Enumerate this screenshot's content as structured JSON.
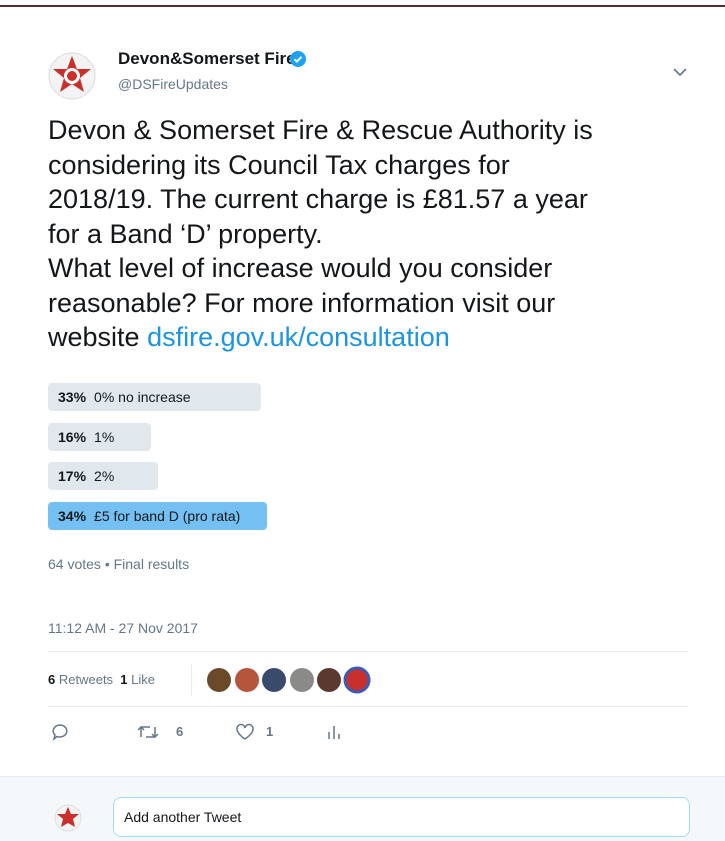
{
  "tweet": {
    "author": {
      "name": "Devon&Somerset Fire",
      "handle": "@DSFireUpdates"
    },
    "text_lines": [
      "Devon & Somerset Fire & Rescue Authority is",
      "considering its Council Tax charges for",
      "2018/19. The current charge is £81.57 a year",
      "for a Band ‘D’ property.",
      "What level of increase would you consider",
      "reasonable? For more information visit our",
      "website "
    ],
    "link": "dsfire.gov.uk/consultation",
    "poll": {
      "options": [
        {
          "percent": 33,
          "percent_label": "33%",
          "label": "0% no increase"
        },
        {
          "percent": 16,
          "percent_label": "16%",
          "label": "1%"
        },
        {
          "percent": 17,
          "percent_label": "17%",
          "label": "2%"
        },
        {
          "percent": 34,
          "percent_label": "34%",
          "label": "£5 for band D (pro rata)"
        }
      ],
      "summary": "64 votes • Final results"
    },
    "timestamp": "11:12 AM - 27 Nov 2017",
    "stats": {
      "retweets": 6,
      "retweets_label": "Retweets",
      "likes": 1,
      "likes_label": "Like"
    },
    "actions": {
      "retweets": 6,
      "likes": 1
    },
    "reply_placeholder": "Add another Tweet"
  }
}
